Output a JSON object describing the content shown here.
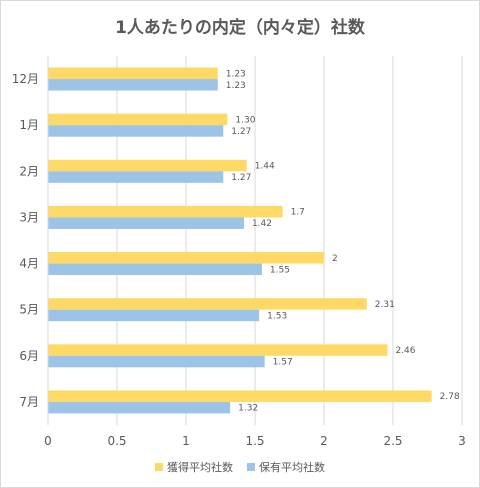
{
  "chart_data": {
    "type": "bar",
    "orientation": "horizontal",
    "title": "1人あたりの内定（内々定）社数",
    "categories": [
      "12月",
      "1月",
      "2月",
      "3月",
      "4月",
      "5月",
      "6月",
      "7月"
    ],
    "series": [
      {
        "name": "獲得平均社数",
        "color": "#FFD966",
        "values": [
          1.23,
          1.3,
          1.44,
          1.7,
          2,
          2.31,
          2.46,
          2.78
        ],
        "labels": [
          "1.23",
          "1.30",
          "1.44",
          "1.7",
          "2",
          "2.31",
          "2.46",
          "2.78"
        ]
      },
      {
        "name": "保有平均社数",
        "color": "#9DC3E6",
        "values": [
          1.23,
          1.27,
          1.27,
          1.42,
          1.55,
          1.53,
          1.57,
          1.32
        ],
        "labels": [
          "1.23",
          "1.27",
          "1.27",
          "1.42",
          "1.55",
          "1.53",
          "1.57",
          "1.32"
        ]
      }
    ],
    "xlim": [
      0,
      3
    ],
    "xticks": [
      "0",
      "0.5",
      "1",
      "1.5",
      "2",
      "2.5",
      "3"
    ],
    "grid": true,
    "legend_position": "bottom"
  }
}
